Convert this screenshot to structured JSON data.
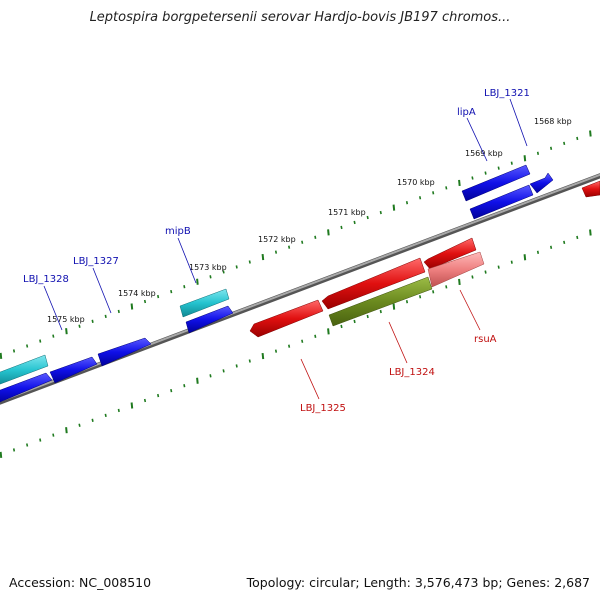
{
  "title": "Leptospira borgpetersenii serovar Hardjo-bovis JB197 chromos...",
  "footer": {
    "accession": "Accession: NC_008510",
    "topology": "Topology: circular; Length: 3,576,473 bp; Genes: 2,687"
  },
  "scale_labels": [
    "1568 kbp",
    "1569 kbp",
    "1570 kbp",
    "1571 kbp",
    "1572 kbp",
    "1573 kbp",
    "1574 kbp",
    "1575 kbp"
  ],
  "gene_labels": {
    "forward": [
      "LBJ_1321",
      "lipA",
      "mipB",
      "LBJ_1327",
      "LBJ_1328"
    ],
    "reverse": [
      "LBJ_1324",
      "rsuA",
      "LBJ_1325"
    ]
  },
  "colors": {
    "forward_gene": "#1010e8",
    "forward_alt_gene": "#25c3cf",
    "reverse_gene": "#e01010",
    "reverse_light_gene": "#ee8080",
    "reverse_olive_gene": "#6b8a1f",
    "backbone": "#808080",
    "tick": "#1f7a1f",
    "forward_label": "#1010b0",
    "reverse_label": "#c01010"
  }
}
